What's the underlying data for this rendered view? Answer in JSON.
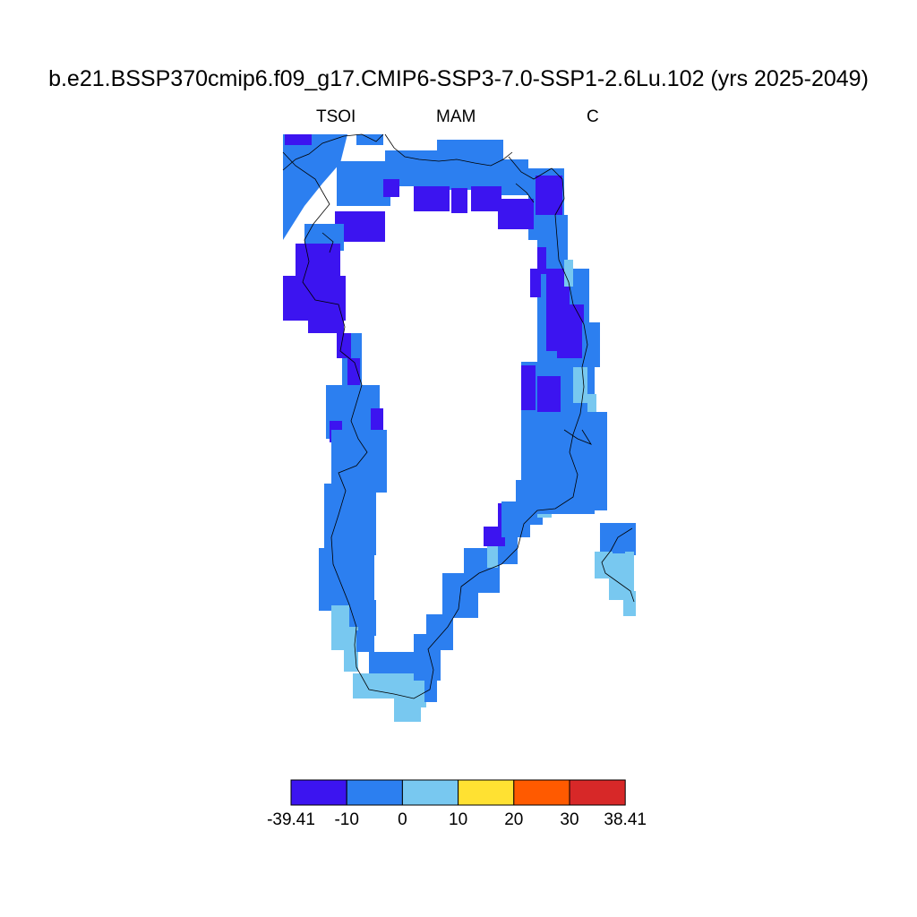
{
  "title": "b.e21.BSSP370cmip6.f09_g17.CMIP6-SSP3-7.0-SSP1-2.6Lu.102 (yrs 2025-2049)",
  "subtitle_left": "TSOI",
  "subtitle_center": "MAM",
  "subtitle_right": "C",
  "colors": {
    "lt_neg10": "#3c14f0",
    "neg10_0": "#2c7ff0",
    "0_10": "#78c8f0",
    "10_20": "#ffe132",
    "20_30": "#ff5a00",
    "gt30": "#d72828"
  },
  "colorbar": {
    "bins": [
      {
        "from": -39.41,
        "to": -10,
        "color": "#3c14f0"
      },
      {
        "from": -10,
        "to": 0,
        "color": "#2c7ff0"
      },
      {
        "from": 0,
        "to": 10,
        "color": "#78c8f0"
      },
      {
        "from": 10,
        "to": 20,
        "color": "#ffe132"
      },
      {
        "from": 20,
        "to": 30,
        "color": "#ff5a00"
      },
      {
        "from": 30,
        "to": 38.41,
        "color": "#d72828"
      }
    ],
    "labels": [
      "-39.41",
      "-10",
      "0",
      "10",
      "20",
      "30",
      "38.41"
    ]
  }
}
